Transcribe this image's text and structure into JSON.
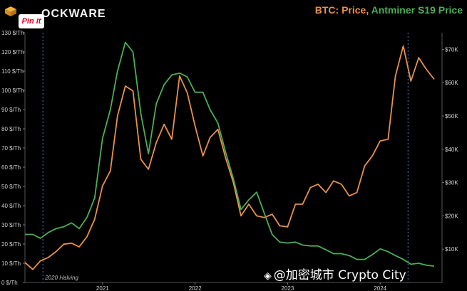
{
  "header": {
    "brand": "OCKWARE",
    "pin_label": "Pin it",
    "title_btc": "BTC: Price",
    "title_sep": ", ",
    "title_miner": "Antminer S19 Price"
  },
  "watermark": {
    "text": "@加密城市 Crypto City",
    "icon": "diamond-icon"
  },
  "colors": {
    "btc": "#e8914a",
    "miner": "#4cae55",
    "grid": "#2a2a2a",
    "halving": "#3d6fb5",
    "background": "#000000"
  },
  "chart_data": {
    "type": "line",
    "title": "BTC: Price, Antminer S19 Price",
    "x_range": [
      "2020-03-01",
      "2024-09-01"
    ],
    "x_ticks": [
      "2021",
      "2022",
      "2023",
      "2024"
    ],
    "y_left": {
      "range": [
        0,
        130
      ],
      "ticks": [
        "0 $/Th",
        "10 $/Th",
        "20 $/Th",
        "30 $/Th",
        "40 $/Th",
        "50 $/Th",
        "60 $/Th",
        "70 $/Th",
        "80 $/Th",
        "90 $/Th",
        "100 $/Th",
        "110 $/Th",
        "120 $/Th",
        "130 $/Th"
      ]
    },
    "y_right": {
      "range": [
        0,
        75000
      ],
      "ticks": [
        "$10K",
        "$20K",
        "$30K",
        "$40K",
        "$50K",
        "$60K",
        "$70K"
      ]
    },
    "annotations": [
      {
        "label": "2020 Halving",
        "date": "2020-05-11"
      },
      {
        "label": "",
        "date": "2024-04-20"
      }
    ],
    "series": [
      {
        "name": "BTC: Price",
        "axis": "right",
        "points": [
          [
            "2020-03-01",
            6000
          ],
          [
            "2020-04-01",
            3900
          ],
          [
            "2020-05-01",
            6500
          ],
          [
            "2020-06-01",
            7500
          ],
          [
            "2020-07-01",
            9200
          ],
          [
            "2020-08-01",
            11500
          ],
          [
            "2020-09-01",
            11800
          ],
          [
            "2020-10-01",
            10700
          ],
          [
            "2020-11-01",
            13800
          ],
          [
            "2020-12-01",
            19000
          ],
          [
            "2021-01-01",
            29000
          ],
          [
            "2021-02-01",
            33500
          ],
          [
            "2021-03-01",
            50000
          ],
          [
            "2021-04-01",
            59000
          ],
          [
            "2021-05-01",
            57500
          ],
          [
            "2021-06-01",
            37000
          ],
          [
            "2021-07-01",
            34000
          ],
          [
            "2021-08-01",
            42000
          ],
          [
            "2021-09-01",
            47500
          ],
          [
            "2021-10-01",
            43000
          ],
          [
            "2021-11-01",
            62000
          ],
          [
            "2021-12-01",
            57000
          ],
          [
            "2022-01-01",
            47000
          ],
          [
            "2022-02-01",
            38000
          ],
          [
            "2022-03-01",
            43500
          ],
          [
            "2022-04-01",
            46000
          ],
          [
            "2022-05-01",
            37500
          ],
          [
            "2022-06-01",
            30000
          ],
          [
            "2022-07-01",
            20000
          ],
          [
            "2022-08-01",
            23500
          ],
          [
            "2022-09-01",
            20000
          ],
          [
            "2022-10-01",
            19500
          ],
          [
            "2022-11-01",
            20500
          ],
          [
            "2022-12-01",
            17000
          ],
          [
            "2023-01-01",
            16700
          ],
          [
            "2023-02-01",
            23500
          ],
          [
            "2023-03-01",
            23500
          ],
          [
            "2023-04-01",
            28500
          ],
          [
            "2023-05-01",
            29500
          ],
          [
            "2023-06-01",
            27000
          ],
          [
            "2023-07-01",
            30500
          ],
          [
            "2023-08-01",
            29500
          ],
          [
            "2023-09-01",
            26000
          ],
          [
            "2023-10-01",
            27000
          ],
          [
            "2023-11-01",
            35000
          ],
          [
            "2023-12-01",
            38000
          ],
          [
            "2024-01-01",
            42500
          ],
          [
            "2024-02-01",
            43000
          ],
          [
            "2024-03-01",
            62000
          ],
          [
            "2024-04-01",
            71000
          ],
          [
            "2024-05-01",
            60500
          ],
          [
            "2024-06-01",
            67500
          ],
          [
            "2024-07-01",
            64000
          ],
          [
            "2024-08-01",
            61000
          ]
        ]
      },
      {
        "name": "Antminer S19 Price",
        "axis": "left",
        "points": [
          [
            "2020-03-01",
            25
          ],
          [
            "2020-04-01",
            25
          ],
          [
            "2020-05-01",
            23
          ],
          [
            "2020-06-01",
            26
          ],
          [
            "2020-07-01",
            28
          ],
          [
            "2020-08-01",
            29
          ],
          [
            "2020-09-01",
            31
          ],
          [
            "2020-10-01",
            28
          ],
          [
            "2020-11-01",
            34
          ],
          [
            "2020-12-01",
            44
          ],
          [
            "2021-01-01",
            75
          ],
          [
            "2021-02-01",
            90
          ],
          [
            "2021-03-01",
            110
          ],
          [
            "2021-04-01",
            125
          ],
          [
            "2021-05-01",
            120
          ],
          [
            "2021-06-01",
            88
          ],
          [
            "2021-07-01",
            67
          ],
          [
            "2021-08-01",
            93
          ],
          [
            "2021-09-01",
            103
          ],
          [
            "2021-10-01",
            108
          ],
          [
            "2021-11-01",
            109
          ],
          [
            "2021-12-01",
            107
          ],
          [
            "2022-01-01",
            99
          ],
          [
            "2022-02-01",
            99
          ],
          [
            "2022-03-01",
            90
          ],
          [
            "2022-04-01",
            83
          ],
          [
            "2022-05-01",
            68
          ],
          [
            "2022-06-01",
            54
          ],
          [
            "2022-07-01",
            38
          ],
          [
            "2022-08-01",
            43
          ],
          [
            "2022-09-01",
            47
          ],
          [
            "2022-10-01",
            36
          ],
          [
            "2022-11-01",
            25
          ],
          [
            "2022-12-01",
            21
          ],
          [
            "2023-01-01",
            20.5
          ],
          [
            "2023-02-01",
            21
          ],
          [
            "2023-03-01",
            19.5
          ],
          [
            "2023-04-01",
            19
          ],
          [
            "2023-05-01",
            19
          ],
          [
            "2023-06-01",
            17
          ],
          [
            "2023-07-01",
            15
          ],
          [
            "2023-08-01",
            15
          ],
          [
            "2023-09-01",
            14
          ],
          [
            "2023-10-01",
            12
          ],
          [
            "2023-11-01",
            12
          ],
          [
            "2023-12-01",
            14.5
          ],
          [
            "2024-01-01",
            17.5
          ],
          [
            "2024-02-01",
            16
          ],
          [
            "2024-03-01",
            14
          ],
          [
            "2024-04-01",
            12
          ],
          [
            "2024-05-01",
            9.5
          ],
          [
            "2024-06-01",
            10
          ],
          [
            "2024-07-01",
            9
          ],
          [
            "2024-08-01",
            8.5
          ]
        ]
      }
    ]
  }
}
